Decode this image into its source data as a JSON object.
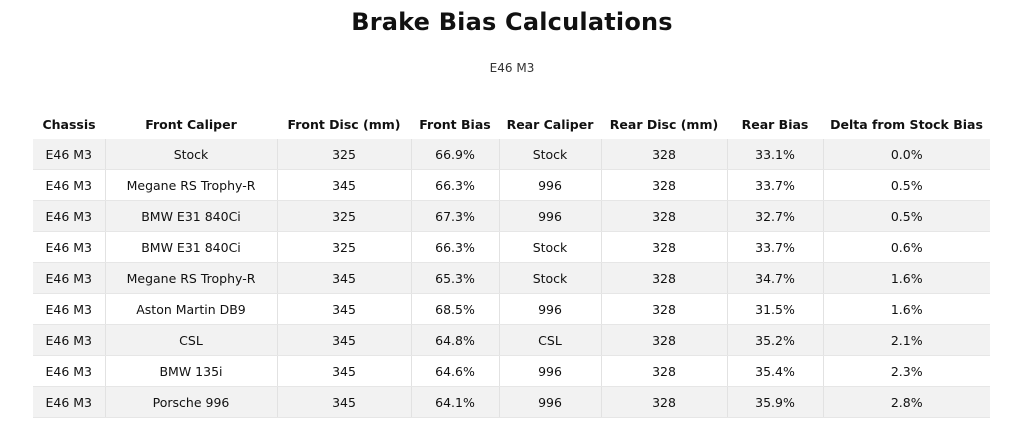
{
  "page": {
    "title": "Brake Bias Calculations",
    "subtitle": "E46 M3"
  },
  "table": {
    "headers": [
      "Chassis",
      "Front Caliper",
      "Front Disc (mm)",
      "Front Bias",
      "Rear Caliper",
      "Rear Disc (mm)",
      "Rear Bias",
      "Delta from Stock Bias"
    ],
    "rows": [
      [
        "E46 M3",
        "Stock",
        "325",
        "66.9%",
        "Stock",
        "328",
        "33.1%",
        "0.0%"
      ],
      [
        "E46 M3",
        "Megane RS Trophy-R",
        "345",
        "66.3%",
        "996",
        "328",
        "33.7%",
        "0.5%"
      ],
      [
        "E46 M3",
        "BMW E31 840Ci",
        "325",
        "67.3%",
        "996",
        "328",
        "32.7%",
        "0.5%"
      ],
      [
        "E46 M3",
        "BMW E31 840Ci",
        "325",
        "66.3%",
        "Stock",
        "328",
        "33.7%",
        "0.6%"
      ],
      [
        "E46 M3",
        "Megane RS Trophy-R",
        "345",
        "65.3%",
        "Stock",
        "328",
        "34.7%",
        "1.6%"
      ],
      [
        "E46 M3",
        "Aston Martin DB9",
        "345",
        "68.5%",
        "996",
        "328",
        "31.5%",
        "1.6%"
      ],
      [
        "E46 M3",
        "CSL",
        "345",
        "64.8%",
        "CSL",
        "328",
        "35.2%",
        "2.1%"
      ],
      [
        "E46 M3",
        "BMW 135i",
        "345",
        "64.6%",
        "996",
        "328",
        "35.4%",
        "2.3%"
      ],
      [
        "E46 M3",
        "Porsche 996",
        "345",
        "64.1%",
        "996",
        "328",
        "35.9%",
        "2.8%"
      ]
    ]
  }
}
